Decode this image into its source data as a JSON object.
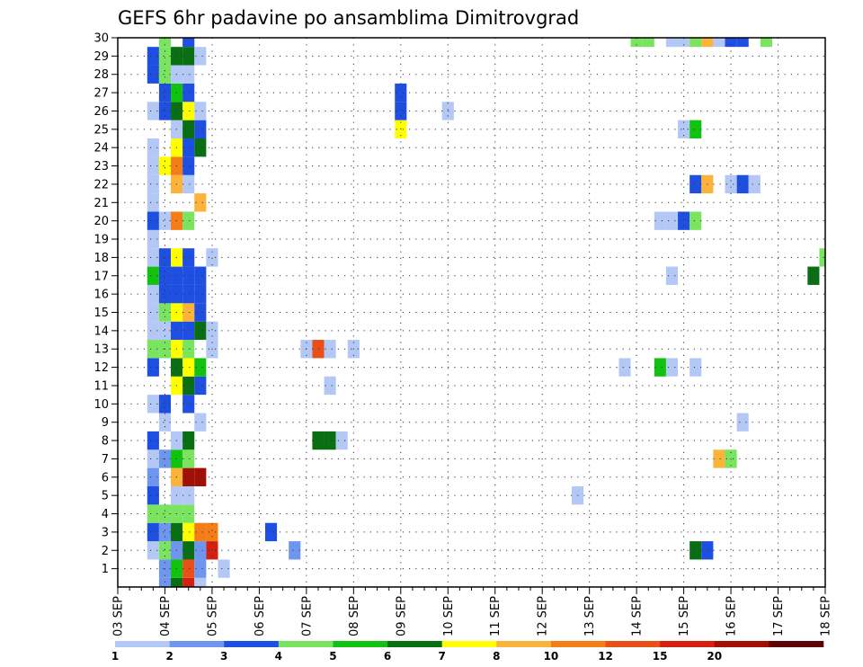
{
  "chart_data": {
    "type": "heatmap",
    "title": "GEFS 6hr padavine po ansamblima Dimitrovgrad",
    "xlabel": "",
    "ylabel": "",
    "x_ticks": [
      "03 SEP",
      "04 SEP",
      "05 SEP",
      "06 SEP",
      "07 SEP",
      "08 SEP",
      "09 SEP",
      "10 SEP",
      "11 SEP",
      "12 SEP",
      "13 SEP",
      "14 SEP",
      "15 SEP",
      "16 SEP",
      "17 SEP",
      "18 SEP"
    ],
    "x_range": [
      0,
      60
    ],
    "y_ticks": [
      "1",
      "2",
      "3",
      "4",
      "5",
      "6",
      "7",
      "8",
      "9",
      "10",
      "11",
      "12",
      "13",
      "14",
      "15",
      "16",
      "17",
      "18",
      "19",
      "20",
      "21",
      "22",
      "23",
      "24",
      "25",
      "26",
      "27",
      "28",
      "29",
      "30"
    ],
    "y_range": [
      0,
      30
    ],
    "grid": true,
    "legend_position": "bottom",
    "color_scale": [
      {
        "label": "1",
        "color": "#b4c8f6"
      },
      {
        "label": "2",
        "color": "#6e96ee"
      },
      {
        "label": "3",
        "color": "#1f4fe0"
      },
      {
        "label": "4",
        "color": "#7ae461"
      },
      {
        "label": "5",
        "color": "#11c211"
      },
      {
        "label": "6",
        "color": "#0a6e14"
      },
      {
        "label": "7",
        "color": "#ffff00"
      },
      {
        "label": "8",
        "color": "#fcb33c"
      },
      {
        "label": "10",
        "color": "#f57d18"
      },
      {
        "label": "12",
        "color": "#e8501a"
      },
      {
        "label": "15",
        "color": "#d42010"
      },
      {
        "label": "20",
        "color": "#a01005"
      },
      {
        "label": "",
        "color": "#5e0404"
      }
    ],
    "cells": [
      [
        4,
        0,
        1
      ],
      [
        5,
        0,
        5
      ],
      [
        6,
        0,
        10
      ],
      [
        7,
        0,
        0
      ],
      [
        4,
        1,
        1
      ],
      [
        5,
        1,
        4
      ],
      [
        6,
        1,
        9
      ],
      [
        7,
        1,
        1
      ],
      [
        9,
        1,
        0
      ],
      [
        3,
        2,
        0
      ],
      [
        4,
        2,
        3
      ],
      [
        5,
        2,
        1
      ],
      [
        6,
        2,
        5
      ],
      [
        7,
        2,
        1
      ],
      [
        8,
        2,
        10
      ],
      [
        15,
        2,
        1
      ],
      [
        49,
        2,
        5
      ],
      [
        50,
        2,
        2
      ],
      [
        3,
        3,
        2
      ],
      [
        4,
        3,
        1
      ],
      [
        5,
        3,
        5
      ],
      [
        6,
        3,
        6
      ],
      [
        7,
        3,
        8
      ],
      [
        8,
        3,
        8
      ],
      [
        13,
        3,
        2
      ],
      [
        3,
        4,
        3
      ],
      [
        4,
        4,
        3
      ],
      [
        5,
        4,
        3
      ],
      [
        6,
        4,
        3
      ],
      [
        3,
        5,
        2
      ],
      [
        5,
        5,
        0
      ],
      [
        6,
        5,
        0
      ],
      [
        39,
        5,
        0
      ],
      [
        3,
        6,
        1
      ],
      [
        5,
        6,
        7
      ],
      [
        6,
        6,
        11
      ],
      [
        7,
        6,
        11
      ],
      [
        3,
        7,
        0
      ],
      [
        4,
        7,
        1
      ],
      [
        5,
        7,
        4
      ],
      [
        6,
        7,
        3
      ],
      [
        51,
        7,
        7
      ],
      [
        52,
        7,
        3
      ],
      [
        3,
        8,
        2
      ],
      [
        5,
        8,
        0
      ],
      [
        6,
        8,
        5
      ],
      [
        17,
        8,
        5
      ],
      [
        18,
        8,
        5
      ],
      [
        19,
        8,
        0
      ],
      [
        4,
        9,
        0
      ],
      [
        7,
        9,
        0
      ],
      [
        53,
        9,
        0
      ],
      [
        3,
        10,
        0
      ],
      [
        4,
        10,
        2
      ],
      [
        6,
        10,
        2
      ],
      [
        5,
        11,
        6
      ],
      [
        6,
        11,
        5
      ],
      [
        7,
        11,
        2
      ],
      [
        18,
        11,
        0
      ],
      [
        3,
        12,
        2
      ],
      [
        5,
        12,
        5
      ],
      [
        6,
        12,
        6
      ],
      [
        7,
        12,
        4
      ],
      [
        43,
        12,
        0
      ],
      [
        46,
        12,
        4
      ],
      [
        47,
        12,
        0
      ],
      [
        49,
        12,
        0
      ],
      [
        3,
        13,
        3
      ],
      [
        4,
        13,
        3
      ],
      [
        5,
        13,
        6
      ],
      [
        6,
        13,
        3
      ],
      [
        8,
        13,
        0
      ],
      [
        16,
        13,
        0
      ],
      [
        17,
        13,
        9
      ],
      [
        18,
        13,
        0
      ],
      [
        20,
        13,
        0
      ],
      [
        3,
        14,
        0
      ],
      [
        4,
        14,
        0
      ],
      [
        5,
        14,
        2
      ],
      [
        6,
        14,
        2
      ],
      [
        7,
        14,
        5
      ],
      [
        8,
        14,
        0
      ],
      [
        3,
        15,
        0
      ],
      [
        4,
        15,
        3
      ],
      [
        5,
        15,
        6
      ],
      [
        6,
        15,
        7
      ],
      [
        7,
        15,
        2
      ],
      [
        3,
        16,
        0
      ],
      [
        4,
        16,
        2
      ],
      [
        5,
        16,
        2
      ],
      [
        6,
        16,
        2
      ],
      [
        7,
        16,
        2
      ],
      [
        3,
        17,
        4
      ],
      [
        4,
        17,
        2
      ],
      [
        5,
        17,
        2
      ],
      [
        6,
        17,
        2
      ],
      [
        7,
        17,
        2
      ],
      [
        47,
        17,
        0
      ],
      [
        59,
        17,
        5
      ],
      [
        3,
        18,
        0
      ],
      [
        4,
        18,
        2
      ],
      [
        5,
        18,
        6
      ],
      [
        6,
        18,
        2
      ],
      [
        8,
        18,
        0
      ],
      [
        60,
        18,
        3
      ],
      [
        3,
        19,
        0
      ],
      [
        3,
        20,
        2
      ],
      [
        4,
        20,
        0
      ],
      [
        5,
        20,
        8
      ],
      [
        6,
        20,
        3
      ],
      [
        46,
        20,
        0
      ],
      [
        47,
        20,
        0
      ],
      [
        48,
        20,
        2
      ],
      [
        49,
        20,
        3
      ],
      [
        3,
        21,
        0
      ],
      [
        7,
        21,
        7
      ],
      [
        3,
        22,
        0
      ],
      [
        5,
        22,
        7
      ],
      [
        6,
        22,
        0
      ],
      [
        49,
        22,
        2
      ],
      [
        50,
        22,
        7
      ],
      [
        52,
        22,
        0
      ],
      [
        53,
        22,
        2
      ],
      [
        54,
        22,
        0
      ],
      [
        3,
        23,
        0
      ],
      [
        4,
        23,
        6
      ],
      [
        5,
        23,
        8
      ],
      [
        6,
        23,
        2
      ],
      [
        3,
        24,
        0
      ],
      [
        5,
        24,
        6
      ],
      [
        6,
        24,
        2
      ],
      [
        7,
        24,
        5
      ],
      [
        5,
        25,
        0
      ],
      [
        6,
        25,
        5
      ],
      [
        7,
        25,
        2
      ],
      [
        24,
        25,
        6
      ],
      [
        48,
        25,
        0
      ],
      [
        49,
        25,
        4
      ],
      [
        3,
        26,
        0
      ],
      [
        4,
        26,
        2
      ],
      [
        5,
        26,
        5
      ],
      [
        6,
        26,
        6
      ],
      [
        7,
        26,
        0
      ],
      [
        24,
        26,
        2
      ],
      [
        28,
        26,
        0
      ],
      [
        4,
        27,
        2
      ],
      [
        5,
        27,
        4
      ],
      [
        6,
        27,
        2
      ],
      [
        24,
        27,
        2
      ],
      [
        3,
        28,
        2
      ],
      [
        4,
        28,
        3
      ],
      [
        5,
        28,
        0
      ],
      [
        6,
        28,
        0
      ],
      [
        3,
        29,
        2
      ],
      [
        4,
        29,
        3
      ],
      [
        5,
        29,
        5
      ],
      [
        6,
        29,
        5
      ],
      [
        7,
        29,
        0
      ],
      [
        4,
        30,
        3
      ],
      [
        6,
        30,
        2
      ],
      [
        44,
        30,
        3
      ],
      [
        45,
        30,
        3
      ],
      [
        47,
        30,
        0
      ],
      [
        48,
        30,
        0
      ],
      [
        49,
        30,
        3
      ],
      [
        50,
        30,
        7
      ],
      [
        51,
        30,
        0
      ],
      [
        52,
        30,
        2
      ],
      [
        53,
        30,
        2
      ],
      [
        55,
        30,
        3
      ]
    ]
  }
}
